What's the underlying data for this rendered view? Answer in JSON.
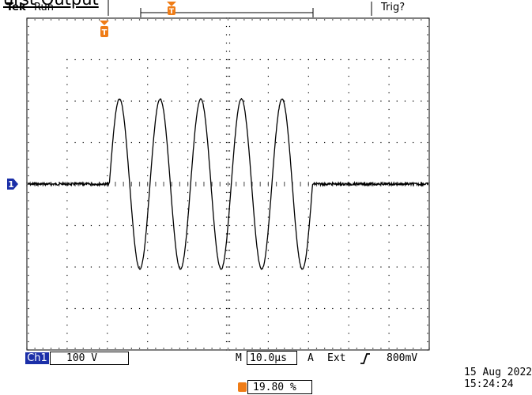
{
  "page": {
    "title": "urst Output"
  },
  "header": {
    "brand": "Tek",
    "run_state": "Run",
    "trigger_status": "Trig?"
  },
  "channel": {
    "label": "Ch1",
    "marker": "1",
    "scale": "100 V",
    "color": "#1b2fa8"
  },
  "horizontal": {
    "mode": "M",
    "timebase": "10.0µs"
  },
  "trigger": {
    "mode": "A",
    "source": "Ext",
    "slope_icon": "rising-edge-icon",
    "level": "800mV",
    "marker": "T",
    "position": "19.80 %",
    "color": "#ef7c16"
  },
  "timestamp": {
    "date": "15 Aug 2022",
    "time": "15:24:24"
  },
  "chart_data": {
    "type": "line",
    "title": "",
    "xlabel": "",
    "ylabel": "",
    "x_unit": "divisions",
    "y_unit": "divisions",
    "xlim": [
      0,
      10
    ],
    "ylim": [
      -4,
      4
    ],
    "grid": true,
    "series": [
      {
        "burst_start_div": 2.05,
        "burst_end_div": 7.1,
        "cycles": 5,
        "amplitude_div": 2.05,
        "baseline_div": 0.0
      }
    ]
  }
}
